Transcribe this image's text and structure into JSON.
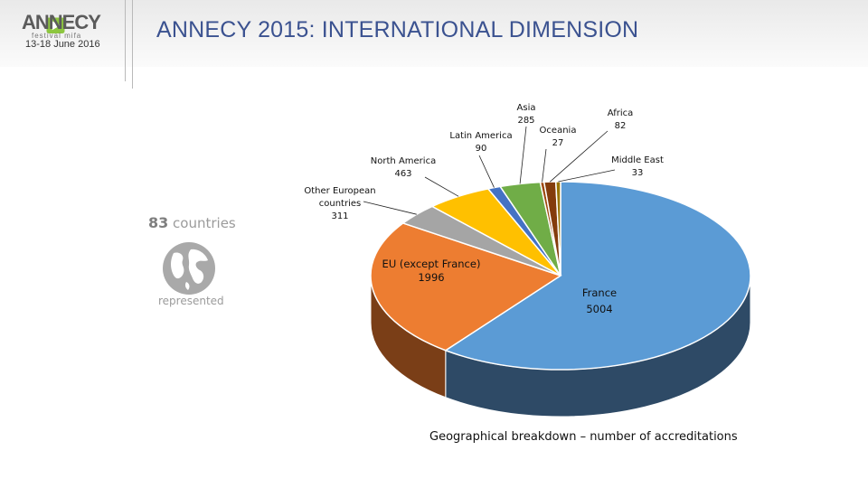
{
  "header": {
    "logo_text": "ANNECY",
    "logo_sub": "festival mifa",
    "dates": "13-18 June 2016",
    "title": "ANNECY 2015: INTERNATIONAL DIMENSION"
  },
  "side": {
    "countries_number": "83",
    "countries_word": "countries",
    "represented": "represented",
    "globe_icon": "globe-icon"
  },
  "caption": "Geographical breakdown – number of accreditations",
  "chart_data": {
    "type": "pie",
    "title": "",
    "slices": [
      {
        "label": "France",
        "value": 5004,
        "color": "#5b9bd5",
        "side_color": "#2e4a66"
      },
      {
        "label": "EU (except France)",
        "value": 1996,
        "color": "#ed7d31",
        "side_color": "#7a3e17"
      },
      {
        "label": "Other European countries",
        "value": 311,
        "color": "#a5a5a5",
        "side_color": "#555555"
      },
      {
        "label": "North America",
        "value": 463,
        "color": "#ffc000",
        "side_color": "#7f6000"
      },
      {
        "label": "Latin America",
        "value": 90,
        "color": "#4472c4",
        "side_color": "#22386a"
      },
      {
        "label": "Asia",
        "value": 285,
        "color": "#70ad47",
        "side_color": "#375623"
      },
      {
        "label": "Oceania",
        "value": 27,
        "color": "#9e480e",
        "side_color": "#4f2407"
      },
      {
        "label": "Africa",
        "value": 82,
        "color": "#843c0c",
        "side_color": "#421e06"
      },
      {
        "label": "Middle East",
        "value": 33,
        "color": "#997300",
        "side_color": "#4c3900"
      }
    ],
    "labels": {
      "france": {
        "name": "France",
        "value": "5004"
      },
      "eu": {
        "name": "EU (except France)",
        "value": "1996"
      },
      "other_eu": {
        "name1": "Other European",
        "name2": "countries",
        "value": "311"
      },
      "north_america": {
        "name": "North America",
        "value": "463"
      },
      "latin_america": {
        "name": "Latin America",
        "value": "90"
      },
      "asia": {
        "name": "Asia",
        "value": "285"
      },
      "oceania": {
        "name": "Oceania",
        "value": "27"
      },
      "africa": {
        "name": "Africa",
        "value": "82"
      },
      "middle_east": {
        "name": "Middle East",
        "value": "33"
      }
    },
    "legend": "none"
  }
}
